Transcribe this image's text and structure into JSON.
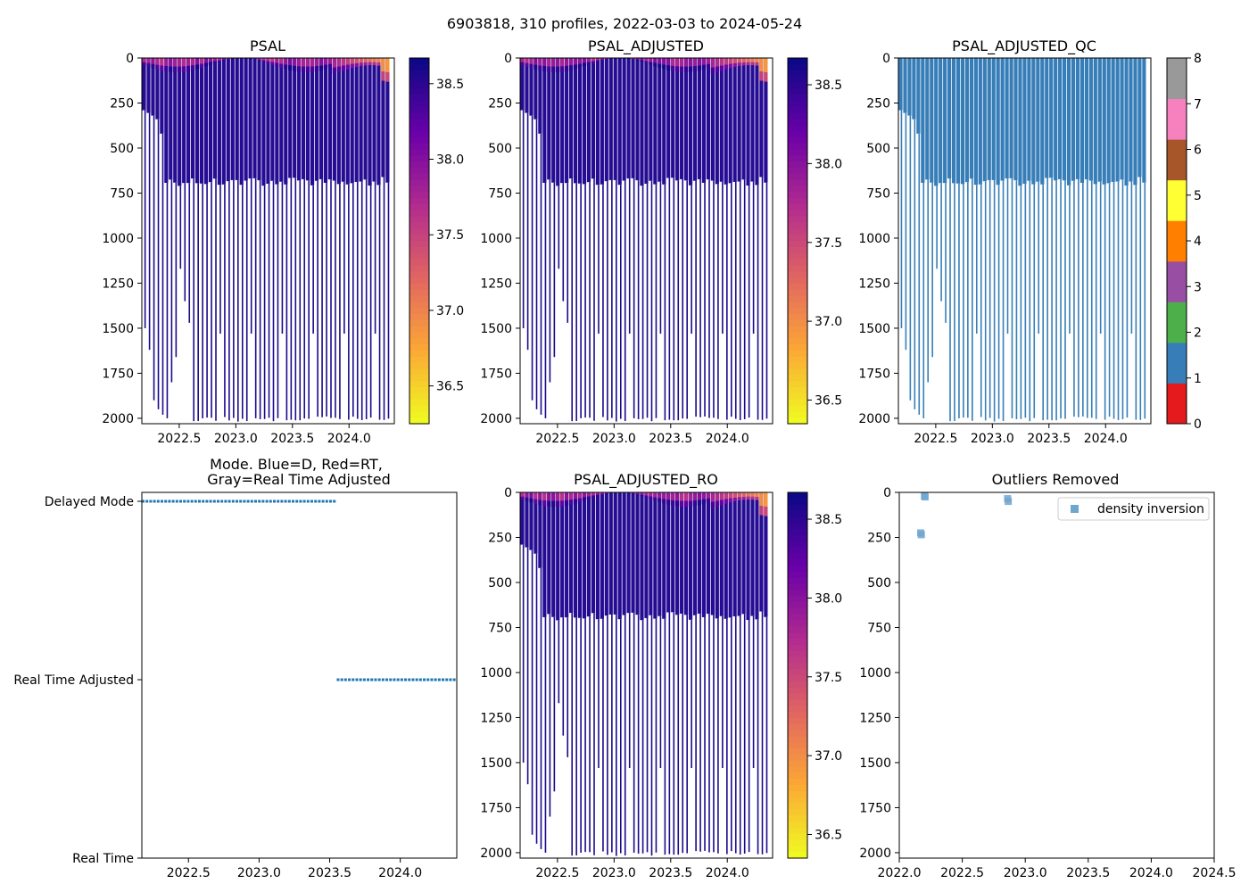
{
  "suptitle": "6903818, 310 profiles, 2022-03-03 to 2024-05-24",
  "chart_data": [
    {
      "id": "psal",
      "type": "heatmap",
      "title": "PSAL",
      "x_ticks": [
        "2022.5",
        "2023.0",
        "2023.5",
        "2024.0"
      ],
      "x_tick_values": [
        2022.5,
        2023.0,
        2023.5,
        2024.0
      ],
      "xlim": [
        2022.17,
        2024.4
      ],
      "y_ticks": [
        "0",
        "250",
        "500",
        "750",
        "1000",
        "1250",
        "1500",
        "1750",
        "2000"
      ],
      "y_tick_values": [
        0,
        250,
        500,
        750,
        1000,
        1250,
        1500,
        1750,
        2000
      ],
      "ylim": [
        2030,
        0
      ],
      "colorbar": {
        "ticks": [
          "36.5",
          "37.0",
          "37.5",
          "38.0",
          "38.5"
        ],
        "tick_values": [
          36.5,
          37.0,
          37.5,
          38.0,
          38.5
        ],
        "range": [
          36.25,
          38.67
        ],
        "cmap": [
          "#f0f921",
          "#fca636",
          "#e16462",
          "#b12a90",
          "#6a00a8",
          "#0d0887"
        ]
      }
    },
    {
      "id": "psal_adj",
      "type": "heatmap",
      "title": "PSAL_ADJUSTED",
      "x_ticks": [
        "2022.5",
        "2023.0",
        "2023.5",
        "2024.0"
      ],
      "x_tick_values": [
        2022.5,
        2023.0,
        2023.5,
        2024.0
      ],
      "xlim": [
        2022.17,
        2024.4
      ],
      "y_ticks": [
        "0",
        "250",
        "500",
        "750",
        "1000",
        "1250",
        "1500",
        "1750",
        "2000"
      ],
      "y_tick_values": [
        0,
        250,
        500,
        750,
        1000,
        1250,
        1500,
        1750,
        2000
      ],
      "ylim": [
        2030,
        0
      ],
      "colorbar": {
        "ticks": [
          "36.5",
          "37.0",
          "37.5",
          "38.0",
          "38.5"
        ],
        "tick_values": [
          36.5,
          37.0,
          37.5,
          38.0,
          38.5
        ],
        "range": [
          36.35,
          38.67
        ],
        "cmap": [
          "#f0f921",
          "#fca636",
          "#e16462",
          "#b12a90",
          "#6a00a8",
          "#0d0887"
        ]
      }
    },
    {
      "id": "psal_qc",
      "type": "heatmap",
      "title": "PSAL_ADJUSTED_QC",
      "x_ticks": [
        "2022.5",
        "2023.0",
        "2023.5",
        "2024.0"
      ],
      "x_tick_values": [
        2022.5,
        2023.0,
        2023.5,
        2024.0
      ],
      "xlim": [
        2022.17,
        2024.4
      ],
      "y_ticks": [
        "0",
        "250",
        "500",
        "750",
        "1000",
        "1250",
        "1500",
        "1750",
        "2000"
      ],
      "y_tick_values": [
        0,
        250,
        500,
        750,
        1000,
        1250,
        1500,
        1750,
        2000
      ],
      "ylim": [
        2030,
        0
      ],
      "qc_color": "#377eb8",
      "colorbar": {
        "ticks": [
          "0",
          "1",
          "2",
          "3",
          "4",
          "5",
          "6",
          "7",
          "8"
        ],
        "tick_values": [
          0,
          1,
          2,
          3,
          4,
          5,
          6,
          7,
          8
        ],
        "range": [
          0,
          8
        ],
        "categories": [
          "#e41a1c",
          "#377eb8",
          "#4daf4a",
          "#984ea3",
          "#ff7f00",
          "#ffff33",
          "#a65628",
          "#f781bf",
          "#999999"
        ]
      }
    },
    {
      "id": "mode",
      "type": "scatter",
      "title_line1": "Mode. Blue=D, Red=RT,",
      "title_line2": "Gray=Real Time Adjusted",
      "x_ticks": [
        "2022.5",
        "2023.0",
        "2023.5",
        "2024.0"
      ],
      "x_tick_values": [
        2022.5,
        2023.0,
        2023.5,
        2024.0
      ],
      "xlim": [
        2022.17,
        2024.4
      ],
      "y_categories": [
        "Delayed Mode",
        "Real Time Adjusted",
        "Real Time"
      ],
      "series": [
        {
          "name": "Delayed Mode",
          "x_start": 2022.17,
          "x_end": 2023.55,
          "color": "#1f77b4"
        },
        {
          "name": "Real Time Adjusted",
          "x_start": 2023.55,
          "x_end": 2024.4,
          "color": "#1f77b4"
        }
      ]
    },
    {
      "id": "psal_ro",
      "type": "heatmap",
      "title": "PSAL_ADJUSTED_RO",
      "x_ticks": [
        "2022.5",
        "2023.0",
        "2023.5",
        "2024.0"
      ],
      "x_tick_values": [
        2022.5,
        2023.0,
        2023.5,
        2024.0
      ],
      "xlim": [
        2022.17,
        2024.4
      ],
      "y_ticks": [
        "0",
        "250",
        "500",
        "750",
        "1000",
        "1250",
        "1500",
        "1750",
        "2000"
      ],
      "y_tick_values": [
        0,
        250,
        500,
        750,
        1000,
        1250,
        1500,
        1750,
        2000
      ],
      "ylim": [
        2030,
        0
      ],
      "colorbar": {
        "ticks": [
          "36.5",
          "37.0",
          "37.5",
          "38.0",
          "38.5"
        ],
        "tick_values": [
          36.5,
          37.0,
          37.5,
          38.0,
          38.5
        ],
        "range": [
          36.35,
          38.67
        ],
        "cmap": [
          "#f0f921",
          "#fca636",
          "#e16462",
          "#b12a90",
          "#6a00a8",
          "#0d0887"
        ]
      }
    },
    {
      "id": "outliers",
      "type": "scatter",
      "title": "Outliers Removed",
      "x_ticks": [
        "2022.0",
        "2022.5",
        "2023.0",
        "2023.5",
        "2024.0",
        "2024.5"
      ],
      "x_tick_values": [
        2022.0,
        2022.5,
        2023.0,
        2023.5,
        2024.0,
        2024.5
      ],
      "xlim": [
        2022.0,
        2024.5
      ],
      "y_ticks": [
        "0",
        "250",
        "500",
        "750",
        "1000",
        "1250",
        "1500",
        "1750",
        "2000"
      ],
      "y_tick_values": [
        0,
        250,
        500,
        750,
        1000,
        1250,
        1500,
        1750,
        2000
      ],
      "ylim": [
        2030,
        0
      ],
      "legend": "density inversion",
      "legend_loc": "top-right",
      "marker_color": "#6fa6d0",
      "points": [
        {
          "x": 2022.2,
          "y": 20
        },
        {
          "x": 2022.205,
          "y": 25
        },
        {
          "x": 2022.17,
          "y": 225
        },
        {
          "x": 2022.175,
          "y": 235
        },
        {
          "x": 2022.86,
          "y": 35
        },
        {
          "x": 2022.865,
          "y": 50
        }
      ]
    }
  ]
}
